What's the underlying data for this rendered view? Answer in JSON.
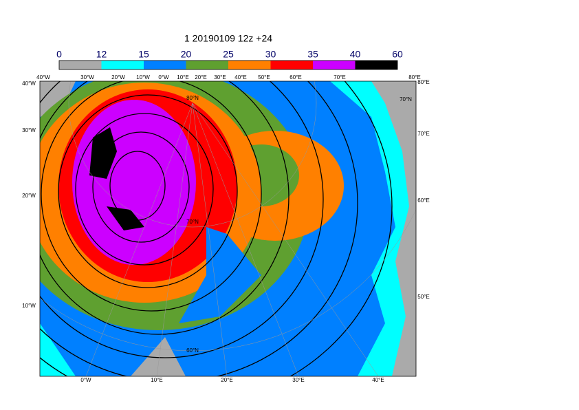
{
  "title": "1 20190109 12z +24",
  "colorbar": {
    "ticks": [
      0,
      12,
      15,
      20,
      25,
      30,
      35,
      40,
      60
    ],
    "colors": [
      "#aaaaaa",
      "#00ffff",
      "#0080ff",
      "#5fa030",
      "#ff8000",
      "#ff0000",
      "#cc00ff",
      "#000000"
    ]
  },
  "top_labels": [
    "40°W",
    "30°W",
    "20°W",
    "10°W",
    "0°W",
    "10°E",
    "20°E",
    "30°E",
    "40°E",
    "50°E",
    "60°E",
    "70°E",
    "80°E"
  ],
  "left_labels": [
    "40°W",
    "30°W",
    "20°W",
    "10°W"
  ],
  "right_labels": [
    "80°E",
    "70°N",
    "70°E",
    "60°E",
    "50°E"
  ],
  "bottom_labels": [
    "0°W",
    "10°E",
    "20°E",
    "30°E",
    "40°E"
  ],
  "map_labels": [
    "80°N",
    "70°N",
    "60°N"
  ]
}
